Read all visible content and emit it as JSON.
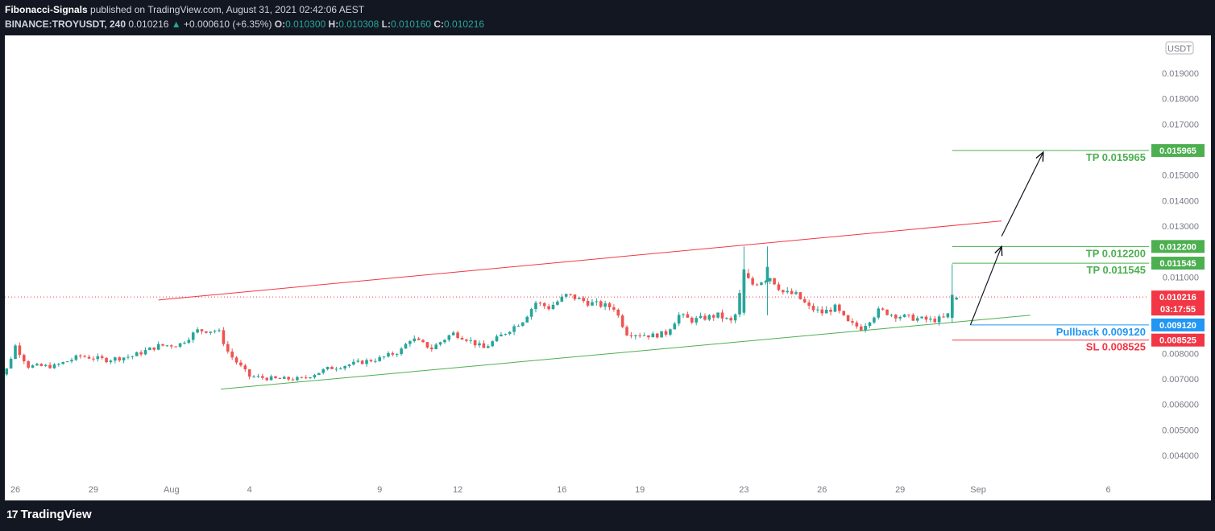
{
  "header": {
    "author": "Fibonacci-Signals",
    "published_text": "published on TradingView.com, August 31, 2021 02:42:06 AEST",
    "symbol": "BINANCE:TROYUSDT, 240",
    "last": "0.010216",
    "up_arrow": "▲",
    "change": "+0.000610 (+6.35%)",
    "o_label": "O:",
    "o_value": "0.010300",
    "h_label": "H:",
    "h_value": "0.010308",
    "l_label": "L:",
    "l_value": "0.010160",
    "c_label": "C:",
    "c_value": "0.010216"
  },
  "footer": {
    "logo_mark": "17",
    "logo_text": "TradingView"
  },
  "chart_data": {
    "type": "candlestick",
    "currency": "USDT",
    "y_axis": {
      "ylim": [
        0.0035,
        0.0201
      ],
      "ticks": [
        "0.019000",
        "0.018000",
        "0.017000",
        "0.015000",
        "0.014000",
        "0.013000",
        "0.011000",
        "0.008000",
        "0.007000",
        "0.006000",
        "0.005000",
        "0.004000"
      ]
    },
    "x_axis": {
      "ticks": [
        {
          "label": "26",
          "day": 26
        },
        {
          "label": "29",
          "day": 29
        },
        {
          "label": "Aug",
          "day": 32
        },
        {
          "label": "4",
          "day": 35
        },
        {
          "label": "9",
          "day": 40
        },
        {
          "label": "12",
          "day": 43
        },
        {
          "label": "16",
          "day": 47
        },
        {
          "label": "19",
          "day": 50
        },
        {
          "label": "23",
          "day": 54
        },
        {
          "label": "26",
          "day": 57
        },
        {
          "label": "29",
          "day": 60
        },
        {
          "label": "Sep",
          "day": 63
        },
        {
          "label": "6",
          "day": 68
        }
      ]
    },
    "price_path": [
      [
        25.0,
        0.00715
      ],
      [
        25.6,
        0.0072
      ],
      [
        26.0,
        0.0083
      ],
      [
        26.5,
        0.0075
      ],
      [
        27.5,
        0.0075
      ],
      [
        28.5,
        0.0079
      ],
      [
        29.5,
        0.00775
      ],
      [
        30.5,
        0.0079
      ],
      [
        31.5,
        0.0083
      ],
      [
        32.3,
        0.00835
      ],
      [
        33.0,
        0.0089
      ],
      [
        33.8,
        0.0089
      ],
      [
        34.2,
        0.008
      ],
      [
        35.0,
        0.0071
      ],
      [
        36.0,
        0.007
      ],
      [
        37.0,
        0.007
      ],
      [
        38.0,
        0.0074
      ],
      [
        39.0,
        0.0076
      ],
      [
        40.0,
        0.0078
      ],
      [
        40.8,
        0.0081
      ],
      [
        41.2,
        0.0086
      ],
      [
        42.0,
        0.0082
      ],
      [
        42.8,
        0.0088
      ],
      [
        43.3,
        0.0086
      ],
      [
        44.0,
        0.0082
      ],
      [
        44.8,
        0.0088
      ],
      [
        45.5,
        0.0093
      ],
      [
        46.0,
        0.01
      ],
      [
        46.5,
        0.0098
      ],
      [
        47.2,
        0.0103
      ],
      [
        48.0,
        0.01
      ],
      [
        49.0,
        0.0098
      ],
      [
        49.5,
        0.0088
      ],
      [
        50.5,
        0.0087
      ],
      [
        51.0,
        0.0088
      ],
      [
        51.5,
        0.0095
      ],
      [
        52.0,
        0.0093
      ],
      [
        53.0,
        0.0095
      ],
      [
        53.6,
        0.0092
      ],
      [
        54.0,
        0.0111
      ],
      [
        54.3,
        0.0107
      ],
      [
        55.0,
        0.011
      ],
      [
        55.5,
        0.0104
      ],
      [
        56.0,
        0.0103
      ],
      [
        56.5,
        0.0098
      ],
      [
        57.0,
        0.0096
      ],
      [
        57.5,
        0.0098
      ],
      [
        58.0,
        0.0092
      ],
      [
        58.5,
        0.009
      ],
      [
        59.2,
        0.0097
      ],
      [
        59.8,
        0.0095
      ],
      [
        60.4,
        0.0094
      ],
      [
        61.2,
        0.0093
      ],
      [
        61.8,
        0.0094
      ],
      [
        62.0,
        0.0101
      ],
      [
        62.3,
        0.01022
      ]
    ],
    "trendlines": [
      {
        "name": "resistance",
        "color": "#f23645",
        "from": [
          31.5,
          0.0101
        ],
        "to": [
          63.9,
          0.0132
        ]
      },
      {
        "name": "support",
        "color": "#4caf50",
        "from": [
          33.9,
          0.0066
        ],
        "to": [
          65.0,
          0.0095
        ]
      }
    ],
    "levels": [
      {
        "label": "TP 0.015965",
        "value": 0.015965,
        "badge": "0.015965",
        "color": "#4caf50",
        "start_day": 62.0
      },
      {
        "label": "TP 0.012200",
        "value": 0.0122,
        "badge": "0.012200",
        "color": "#4caf50",
        "start_day": 62.0
      },
      {
        "label": "TP 0.011545",
        "value": 0.011545,
        "badge": "0.011545",
        "color": "#4caf50",
        "start_day": 62.0
      },
      {
        "label": "Pullback 0.009120",
        "value": 0.00912,
        "badge": "0.009120",
        "color": "#2196f3",
        "start_day": 62.7
      },
      {
        "label": "SL 0.008525",
        "value": 0.008525,
        "badge": "0.008525",
        "color": "#f23645",
        "start_day": 62.0
      }
    ],
    "current_price": {
      "value": 0.010216,
      "badge": "0.010216",
      "countdown": "03:17:55",
      "color": "#f23645"
    },
    "arrows": [
      {
        "from": [
          62.7,
          0.00912
        ],
        "to": [
          63.9,
          0.0122
        ]
      },
      {
        "from": [
          63.9,
          0.0126
        ],
        "to": [
          65.5,
          0.0159
        ]
      }
    ]
  }
}
